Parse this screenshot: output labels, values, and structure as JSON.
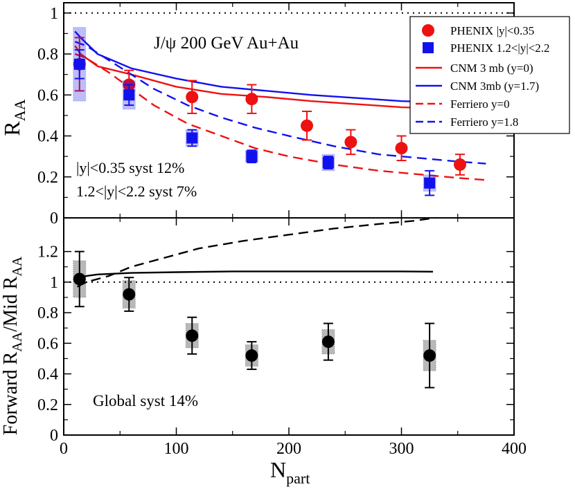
{
  "chart_data": [
    {
      "type": "scatter",
      "panel": "top",
      "title": "J/ψ   200 GeV Au+Au",
      "ylabel": "R",
      "ylabel_sub": "AA",
      "xlim": [
        0,
        400
      ],
      "ylim": [
        0,
        1.05
      ],
      "yticks": [
        0,
        0.2,
        0.4,
        0.6,
        0.8,
        1
      ],
      "ytick_labels": [
        "0",
        "0.2",
        "0.4",
        "0.6",
        "0.8",
        "1"
      ],
      "reference_line": 1,
      "legend_position": "top-right",
      "annotations": [
        {
          "text": "|y|<0.35 syst 12%",
          "color": "#ee1111"
        },
        {
          "text": "1.2<|y|<2.2 syst 7%",
          "color": "#1111ee"
        }
      ],
      "series": [
        {
          "name": "PHENIX |y|<0.35",
          "kind": "points",
          "marker": "circle",
          "color": "#ee1111",
          "x": [
            14,
            58,
            114,
            167,
            216,
            255,
            300,
            352
          ],
          "y": [
            0.75,
            0.65,
            0.59,
            0.58,
            0.45,
            0.37,
            0.34,
            0.26
          ],
          "err": [
            0.13,
            0.07,
            0.08,
            0.07,
            0.07,
            0.06,
            0.06,
            0.05
          ]
        },
        {
          "name": "PHENIX 1.2<|y|<2.2",
          "kind": "points",
          "marker": "square",
          "color": "#1111ee",
          "x": [
            14,
            58,
            114,
            167,
            235,
            325
          ],
          "y": [
            0.75,
            0.6,
            0.39,
            0.3,
            0.27,
            0.17
          ],
          "err": [
            0.07,
            0.05,
            0.04,
            0.03,
            0.03,
            0.06
          ],
          "syst": [
            0.18,
            0.07,
            0.04,
            0.03,
            0.04,
            0.04
          ]
        },
        {
          "name": "CNM 3 mb (y=0)",
          "kind": "line",
          "style": "solid",
          "color": "#ee1111",
          "x": [
            10,
            15,
            30,
            60,
            100,
            140,
            180,
            220,
            260,
            300,
            330
          ],
          "y": [
            0.84,
            0.8,
            0.74,
            0.7,
            0.64,
            0.605,
            0.59,
            0.57,
            0.555,
            0.54,
            0.535
          ]
        },
        {
          "name": "CNM 3mb (y=1.7)",
          "kind": "line",
          "style": "solid",
          "color": "#1111ee",
          "x": [
            10,
            15,
            30,
            60,
            100,
            140,
            180,
            220,
            260,
            300,
            330
          ],
          "y": [
            0.91,
            0.88,
            0.8,
            0.73,
            0.68,
            0.64,
            0.62,
            0.6,
            0.585,
            0.57,
            0.565
          ]
        },
        {
          "name": "Ferriero y=0",
          "kind": "line",
          "style": "dashed",
          "color": "#ee1111",
          "x": [
            10,
            20,
            40,
            60,
            80,
            110,
            140,
            170,
            200,
            240,
            280,
            320,
            350,
            375
          ],
          "y": [
            0.8,
            0.78,
            0.71,
            0.63,
            0.55,
            0.46,
            0.4,
            0.34,
            0.3,
            0.26,
            0.23,
            0.21,
            0.195,
            0.185
          ]
        },
        {
          "name": "Ferriero y=1.8",
          "kind": "line",
          "style": "dashed",
          "color": "#1111ee",
          "x": [
            10,
            20,
            40,
            60,
            80,
            110,
            140,
            170,
            200,
            240,
            280,
            320,
            350,
            375
          ],
          "y": [
            0.86,
            0.84,
            0.77,
            0.7,
            0.63,
            0.55,
            0.49,
            0.44,
            0.4,
            0.35,
            0.31,
            0.29,
            0.275,
            0.265
          ]
        }
      ]
    },
    {
      "type": "scatter",
      "panel": "bottom",
      "xlabel": "N",
      "xlabel_sub": "part",
      "ylabel_parts": [
        "Forward R",
        "AA",
        "/Mid R",
        "AA"
      ],
      "xlim": [
        0,
        400
      ],
      "ylim": [
        0,
        1.42
      ],
      "xticks": [
        0,
        100,
        200,
        300,
        400
      ],
      "xtick_labels": [
        "0",
        "100",
        "200",
        "300",
        "400"
      ],
      "yticks": [
        0,
        0.2,
        0.4,
        0.6,
        0.8,
        1,
        1.2
      ],
      "ytick_labels": [
        "0",
        "0.2",
        "0.4",
        "0.6",
        "0.8",
        "1",
        "1.2"
      ],
      "reference_line": 1,
      "annotations": [
        {
          "text": "Global syst 14%",
          "color": "#000000"
        }
      ],
      "series": [
        {
          "kind": "points",
          "marker": "circle",
          "color": "#000000",
          "x": [
            14,
            58,
            114,
            167,
            235,
            325
          ],
          "y": [
            1.02,
            0.92,
            0.65,
            0.52,
            0.61,
            0.52
          ],
          "err": [
            0.18,
            0.11,
            0.12,
            0.09,
            0.12,
            0.21
          ],
          "syst": [
            0.12,
            0.09,
            0.08,
            0.07,
            0.08,
            0.1
          ]
        },
        {
          "kind": "line",
          "style": "solid",
          "color": "#000000",
          "x": [
            12,
            20,
            30,
            60,
            100,
            150,
            200,
            250,
            300,
            328
          ],
          "y": [
            1.03,
            1.04,
            1.05,
            1.06,
            1.065,
            1.07,
            1.07,
            1.07,
            1.07,
            1.068
          ]
        },
        {
          "kind": "line",
          "style": "dashed",
          "color": "#000000",
          "x": [
            12,
            20,
            40,
            60,
            90,
            120,
            160,
            200,
            240,
            280,
            310,
            330
          ],
          "y": [
            0.97,
            1.0,
            1.04,
            1.1,
            1.16,
            1.22,
            1.27,
            1.31,
            1.35,
            1.38,
            1.4,
            1.42
          ]
        }
      ]
    }
  ]
}
